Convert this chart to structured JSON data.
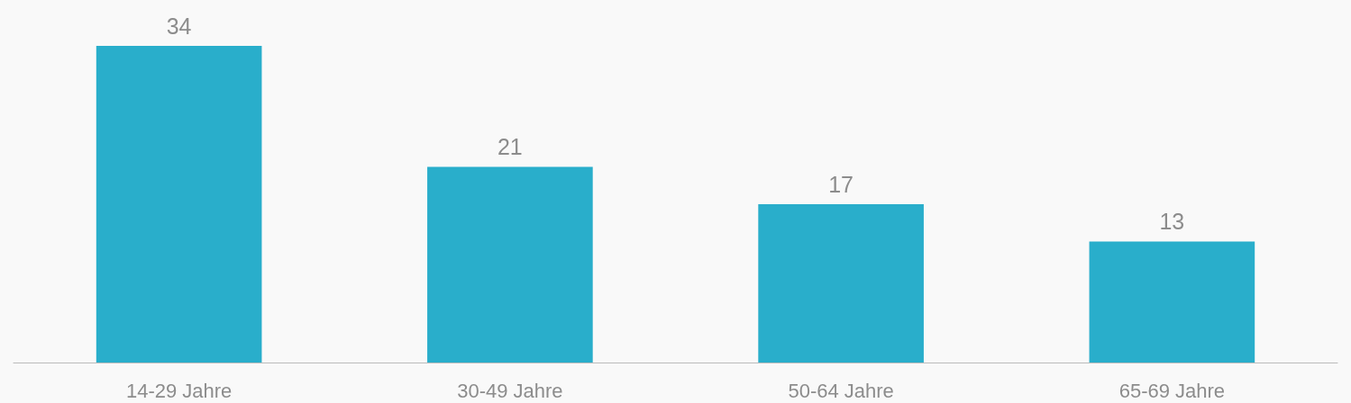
{
  "chart_data": {
    "type": "bar",
    "categories": [
      "14-29 Jahre",
      "30-49 Jahre",
      "50-64 Jahre",
      "65-69 Jahre"
    ],
    "values": [
      34,
      21,
      17,
      13
    ],
    "color": "#29aecb",
    "data_labels": true
  }
}
